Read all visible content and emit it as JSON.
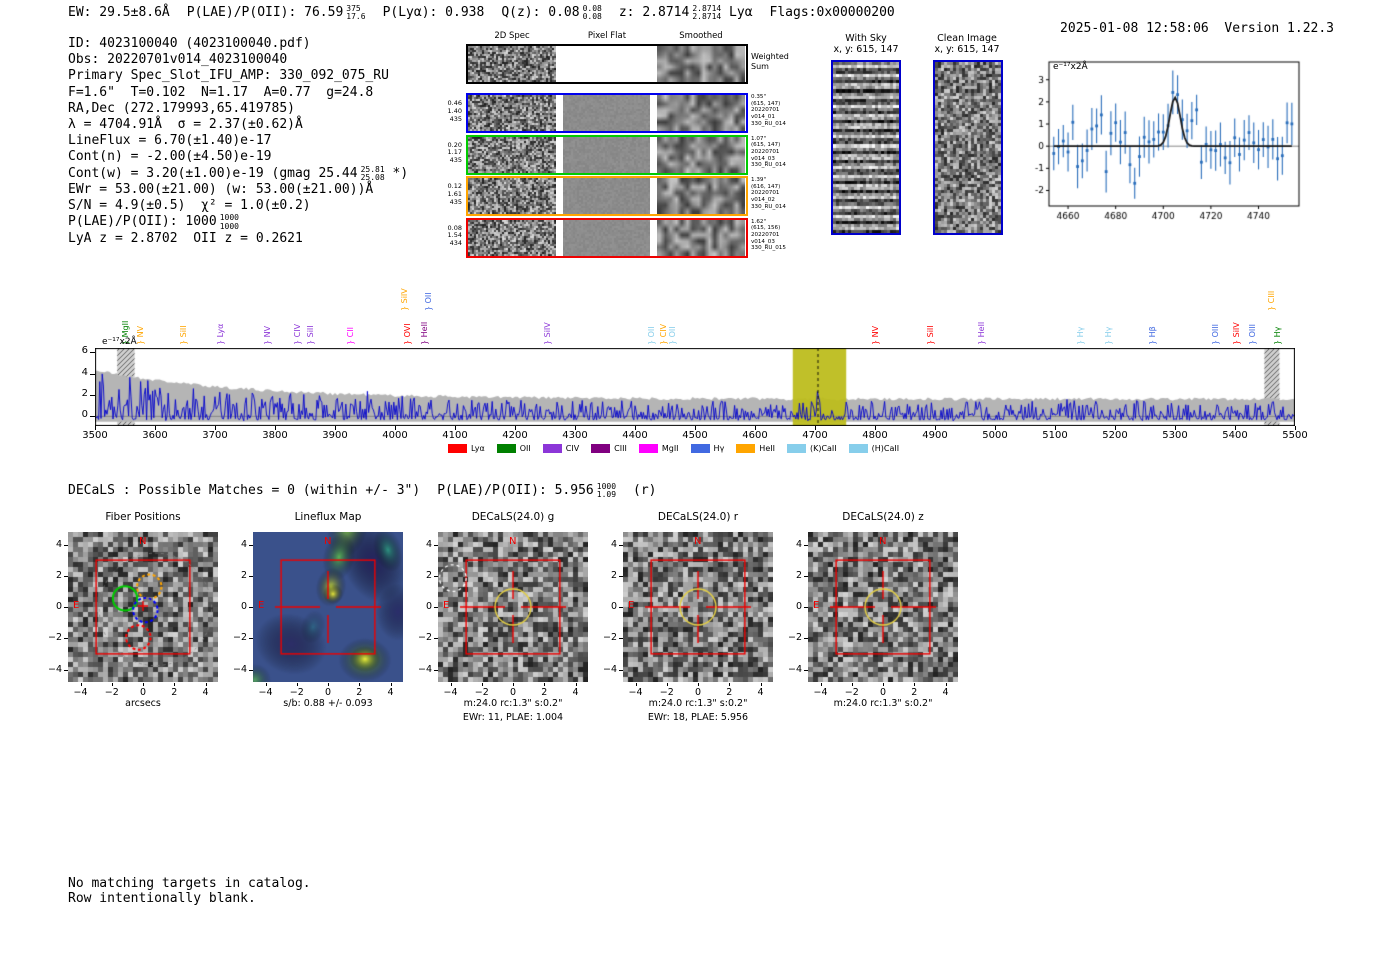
{
  "header": {
    "segments": [
      {
        "t": "EW: 29.5±8.6Å"
      },
      {
        "t": "P(LAE)/P(OII): 76.59",
        "sup": "375",
        "sub": "17.6"
      },
      {
        "t": "P(Lyα): 0.938"
      },
      {
        "t": "Q(z): 0.08",
        "sup": "0.08",
        "sub": "0.08"
      },
      {
        "t": "z: 2.8714",
        "sup": "2.8714",
        "sub": "2.8714",
        "post": "Lyα"
      },
      {
        "t": "Flags:0x00000200"
      }
    ],
    "datetime": "2025-01-08 12:58:06",
    "version": "Version 1.22.3"
  },
  "info": {
    "lines": [
      [
        {
          "t": "ID: 4023100040 (4023100040.pdf)"
        }
      ],
      [
        {
          "t": "Obs: 20220701v014_4023100040"
        }
      ],
      [
        {
          "t": "Primary Spec_Slot_IFU_AMP: 330_092_075_RU"
        }
      ],
      [
        {
          "t": "F=1.6\"  T=0.102  N=1.17  A=0.77  g=24.8"
        }
      ],
      [
        {
          "t": "RA,Dec (272.179993,65.419785)"
        }
      ],
      [
        {
          "t": "λ = 4704.91Å  σ = 2.37(±0.62)Å"
        }
      ],
      [
        {
          "t": "LineFlux = 6.70(±1.40)e-17"
        }
      ],
      [
        {
          "t": "Cont(n) = -2.00(±4.50)e-19"
        }
      ],
      [
        {
          "t": "Cont(w) = 3.20(±1.00)e-19 (gmag 25.44"
        },
        {
          "sup": "25.81",
          "sub": "25.08"
        },
        {
          "t": " *)"
        }
      ],
      [
        {
          "t": "EWr = 53.00(±21.00) (w: 53.00(±21.00))Å"
        }
      ],
      [
        {
          "t": "S/N = 4.9(±0.5)  χ² = 1.0(±0.2)"
        }
      ],
      [
        {
          "t": "P(LAE)/P(OII): 1000"
        },
        {
          "sup": "1000",
          "sub": "1000"
        }
      ],
      [
        {
          "t": "LyA z = 2.8702  OII z = 0.2621"
        }
      ]
    ]
  },
  "spec2d": {
    "col_titles": [
      "2D Spec",
      "Pixel Flat",
      "Smoothed"
    ],
    "rows": [
      {
        "border": "#000000",
        "left": [],
        "right": [
          "Weighted",
          "Sum"
        ],
        "right_large": true,
        "flat": "white",
        "seed": 11
      },
      {
        "border": "#0000ee",
        "left": [
          "0.46",
          "1.40",
          "435"
        ],
        "right": [
          "0.35\"",
          "(615, 147)",
          "20220701",
          "v014_01",
          "330_RU_014"
        ],
        "flat": "gray",
        "seed": 12
      },
      {
        "border": "#00cc00",
        "left": [
          "0.20",
          "1.17",
          "435"
        ],
        "right": [
          "1.07\"",
          "(615, 147)",
          "20220701",
          "v014_03",
          "330_RU_014"
        ],
        "flat": "gray",
        "seed": 13
      },
      {
        "border": "#ffa500",
        "left": [
          "0.12",
          "1.61",
          "435"
        ],
        "right": [
          "1.39\"",
          "(616, 147)",
          "20220701",
          "v014_02",
          "330_RU_014"
        ],
        "flat": "gray",
        "seed": 14
      },
      {
        "border": "#ee0000",
        "left": [
          "0.08",
          "1.54",
          "434"
        ],
        "right": [
          "1.62\"",
          "(615, 156)",
          "20220701",
          "v014_03",
          "330_RU_015"
        ],
        "flat": "gray",
        "seed": 15
      }
    ]
  },
  "withsky": {
    "title": "With Sky",
    "coords": "x, y: 615, 147"
  },
  "clean": {
    "title": "Clean Image",
    "coords": "x, y: 615, 147"
  },
  "decals_header": {
    "segments": [
      {
        "t": "DECaLS : Possible Matches = 0 (within +/- 3\")"
      },
      {
        "t": "P(LAE)/P(OII): 5.956",
        "sup": "1000",
        "sub": "1.09"
      },
      {
        "t": "(r)"
      }
    ]
  },
  "footer": {
    "lines": [
      "No matching targets in catalog.",
      "Row intentionally blank."
    ]
  },
  "colors": {
    "spectrum_blue": "#0000cd",
    "box_blue": "#0000cc",
    "accent_red": "#ee0000",
    "selected_band_yellow": "#bdbd1e",
    "aperture_yellow": "#e3cf45"
  },
  "chart_data": [
    {
      "id": "linefit_zoom",
      "type": "scatter",
      "unit_label": "e⁻¹⁷x2Å",
      "x_range": [
        4652,
        4757
      ],
      "y_range": [
        -2.7,
        3.8
      ],
      "xticks": [
        4660,
        4680,
        4700,
        4720,
        4740
      ],
      "yticks": [
        -2,
        -1,
        0,
        1,
        2,
        3
      ],
      "fit": {
        "center": 4704.91,
        "sigma": 2.37,
        "amplitude": 2.2
      },
      "points_step": 2,
      "noise_sigma": 0.72,
      "error_bar": 0.8,
      "marker_color": "#2a6ebb",
      "fit_color": "#1a1a1a",
      "seed": 7
    },
    {
      "id": "full_spectrum",
      "type": "line",
      "unit_label": "e⁻¹⁷x2Å",
      "x_range": [
        3500,
        5500
      ],
      "y_range": [
        -0.9,
        6.4
      ],
      "xticks": [
        3500,
        3600,
        3700,
        3800,
        3900,
        4000,
        4100,
        4200,
        4300,
        4400,
        4500,
        4600,
        4700,
        4800,
        4900,
        5000,
        5100,
        5200,
        5300,
        5400,
        5500
      ],
      "yticks": [
        0,
        2,
        4,
        6
      ],
      "line_color": "#0000cd",
      "envelope_color": "#b5b5b5",
      "selected_band": {
        "x0": 4663,
        "x1": 4752,
        "color": "#bdbd1e"
      },
      "dashed_line_x": 4705,
      "hatched_bands": [
        [
          3537,
          3566
        ],
        [
          5449,
          5474
        ]
      ],
      "emission_peak": {
        "x": 4704.91,
        "amplitude": 2.5
      },
      "seed": 21,
      "line_markers": [
        {
          "label": "MgII",
          "x": 3552,
          "color": "#008000",
          "level": 0
        },
        {
          "label": "NV",
          "x": 3576,
          "color": "#ffa500",
          "level": 0
        },
        {
          "label": "SiII",
          "x": 3648,
          "color": "#ffa500",
          "level": 0
        },
        {
          "label": "Lyα",
          "x": 3710,
          "color": "#8c36d8",
          "level": 0
        },
        {
          "label": "NV",
          "x": 3788,
          "color": "#8c36d8",
          "level": 0
        },
        {
          "label": "CIV",
          "x": 3838,
          "color": "#8c36d8",
          "level": 0
        },
        {
          "label": "SiII",
          "x": 3860,
          "color": "#8c36d8",
          "level": 0
        },
        {
          "label": "CII",
          "x": 3926,
          "color": "#ff00ff",
          "level": 0
        },
        {
          "label": "SiIV",
          "x": 4016,
          "color": "#ffa500",
          "level": 1
        },
        {
          "label": "OVI",
          "x": 4021,
          "color": "#ff0000",
          "level": 0
        },
        {
          "label": "HeII",
          "x": 4050,
          "color": "#800080",
          "level": 0
        },
        {
          "label": "OII",
          "x": 4056,
          "color": "#4169e1",
          "level": 1
        },
        {
          "label": "SiIV",
          "x": 4255,
          "color": "#8c36d8",
          "level": 0
        },
        {
          "label": "OII",
          "x": 4428,
          "color": "#87ceeb",
          "level": 0
        },
        {
          "label": "CIV",
          "x": 4448,
          "color": "#ffa500",
          "level": 0
        },
        {
          "label": "OII",
          "x": 4464,
          "color": "#87ceeb",
          "level": 0
        },
        {
          "label": "NV",
          "x": 4802,
          "color": "#ff0000",
          "level": 0
        },
        {
          "label": "SiII",
          "x": 4894,
          "color": "#ff0000",
          "level": 0
        },
        {
          "label": "HeII",
          "x": 4978,
          "color": "#8c36d8",
          "level": 0
        },
        {
          "label": "Hγ",
          "x": 5144,
          "color": "#87ceeb",
          "level": 0
        },
        {
          "label": "Hγ",
          "x": 5190,
          "color": "#87ceeb",
          "level": 0
        },
        {
          "label": "Hβ",
          "x": 5264,
          "color": "#4169e1",
          "level": 0
        },
        {
          "label": "OIII",
          "x": 5368,
          "color": "#4169e1",
          "level": 0
        },
        {
          "label": "SiIV",
          "x": 5404,
          "color": "#ff0000",
          "level": 0
        },
        {
          "label": "OIII",
          "x": 5430,
          "color": "#4169e1",
          "level": 0
        },
        {
          "label": "CIII",
          "x": 5462,
          "color": "#ffa500",
          "level": 1
        },
        {
          "label": "Hγ",
          "x": 5472,
          "color": "#008000",
          "level": 0
        }
      ],
      "legend": [
        {
          "label": "Lyα",
          "color": "#ff0000"
        },
        {
          "label": "OII",
          "color": "#008000"
        },
        {
          "label": "CIV",
          "color": "#8c36d8"
        },
        {
          "label": "CIII",
          "color": "#800080"
        },
        {
          "label": "MgII",
          "color": "#ff00ff"
        },
        {
          "label": "Hγ",
          "color": "#4169e1"
        },
        {
          "label": "HeII",
          "color": "#ffa500"
        },
        {
          "label": "(K)CaII",
          "color": "#87ceeb"
        },
        {
          "label": "(H)CaII",
          "color": "#87ceeb"
        }
      ]
    },
    {
      "id": "fiber_positions",
      "type": "image",
      "title": "Fiber Positions",
      "xlabel": "arcsecs",
      "axis_range": [
        -4.8,
        4.8
      ],
      "ticks": [
        -4,
        -2,
        0,
        2,
        4
      ],
      "compass": {
        "north": "N",
        "east": "E"
      },
      "box_arcsec": 3,
      "sub_lines": [],
      "fibers": [
        {
          "x": -1.15,
          "y": 0.55,
          "r": 0.78,
          "color": "#00cc00",
          "dashed": false
        },
        {
          "x": 0.4,
          "y": 1.3,
          "r": 0.78,
          "color": "#ffa500",
          "dashed": true
        },
        {
          "x": 0.15,
          "y": -0.2,
          "r": 0.78,
          "color": "#0000ff",
          "dashed": true
        },
        {
          "x": -0.3,
          "y": -1.95,
          "r": 0.78,
          "color": "#ff0000",
          "dashed": true
        }
      ],
      "ghost_fibers": [
        [
          0.7,
          2.05
        ],
        [
          2.15,
          1.3
        ],
        [
          2.5,
          -0.25
        ],
        [
          1.9,
          -1.75
        ],
        [
          0.45,
          -2.9
        ],
        [
          -1.35,
          2.5
        ],
        [
          3.1,
          2.3
        ],
        [
          3.3,
          0.6
        ]
      ],
      "ghost_r": 0.78,
      "outer_circle": {
        "x": 0.8,
        "y": -0.15,
        "r": 3.6
      },
      "seed": 31
    },
    {
      "id": "lineflux_map",
      "type": "heatmap",
      "title": "Lineflux Map",
      "sub_lines": [
        "s/b: 0.88 +/- 0.093"
      ],
      "axis_range": [
        -4.8,
        4.8
      ],
      "ticks": [
        -4,
        -2,
        0,
        2,
        4
      ],
      "compass": {
        "north": "N",
        "east": "E"
      },
      "box_arcsec": 3,
      "colormap": "viridis",
      "seed": 32
    },
    {
      "id": "decals_g",
      "type": "image",
      "title": "DECaLS(24.0) g",
      "sub_lines": [
        "m:24.0 rc:1.3\"  s:0.2\"",
        "EWr: 11, PLAE: 1.004"
      ],
      "axis_range": [
        -4.8,
        4.8
      ],
      "ticks": [
        -4,
        -2,
        0,
        2,
        4
      ],
      "compass": {
        "north": "N",
        "east": "E"
      },
      "box_arcsec": 3,
      "aperture": {
        "x": 0,
        "y": 0,
        "r": 1.15,
        "color": "#e3cf45"
      },
      "masked_circle": {
        "x": -3.85,
        "y": 1.85,
        "r": 0.85,
        "color": "#ffffff",
        "dashed": true
      },
      "seed": 33
    },
    {
      "id": "decals_r",
      "type": "image",
      "title": "DECaLS(24.0) r",
      "sub_lines": [
        "m:24.0 rc:1.3\"  s:0.2\"",
        "EWr: 18, PLAE: 5.956"
      ],
      "axis_range": [
        -4.8,
        4.8
      ],
      "ticks": [
        -4,
        -2,
        0,
        2,
        4
      ],
      "compass": {
        "north": "N",
        "east": "E"
      },
      "box_arcsec": 3,
      "aperture": {
        "x": 0,
        "y": 0,
        "r": 1.15,
        "color": "#e3cf45"
      },
      "seed": 34
    },
    {
      "id": "decals_z",
      "type": "image",
      "title": "DECaLS(24.0) z",
      "sub_lines": [
        "m:24.0 rc:1.3\"  s:0.2\""
      ],
      "axis_range": [
        -4.8,
        4.8
      ],
      "ticks": [
        -4,
        -2,
        0,
        2,
        4
      ],
      "compass": {
        "north": "N",
        "east": "E"
      },
      "box_arcsec": 3,
      "aperture": {
        "x": 0,
        "y": 0,
        "r": 1.15,
        "color": "#e3cf45"
      },
      "seed": 35
    }
  ]
}
